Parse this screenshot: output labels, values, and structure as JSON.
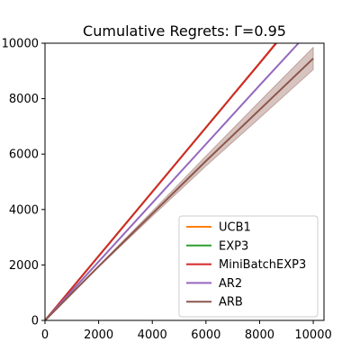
{
  "chart_data": {
    "type": "line",
    "title": "Cumulative Regrets: Γ=0.95",
    "xlabel": "",
    "ylabel": "",
    "xlim": [
      0,
      10400
    ],
    "ylim": [
      0,
      10000
    ],
    "xticks": [
      0,
      2000,
      4000,
      6000,
      8000,
      10000
    ],
    "yticks": [
      0,
      2000,
      4000,
      6000,
      8000,
      10000
    ],
    "grid": false,
    "legend_position": "lower-right",
    "series": [
      {
        "name": "UCB1",
        "color": "#ff7f0e",
        "x": [
          0,
          2000,
          4000,
          6000,
          8000,
          8600
        ],
        "y": [
          0,
          2320,
          4640,
          6960,
          9280,
          10000
        ]
      },
      {
        "name": "EXP3",
        "color": "#2ca02c",
        "x": [
          0,
          2000,
          4000,
          6000,
          8000,
          8620
        ],
        "y": [
          0,
          2320,
          4640,
          6960,
          9280,
          10000
        ]
      },
      {
        "name": "MiniBatchEXP3",
        "color": "#d62728",
        "x": [
          0,
          2000,
          4000,
          6000,
          8000,
          8620
        ],
        "y": [
          0,
          2320,
          4640,
          6960,
          9280,
          10000
        ]
      },
      {
        "name": "AR2",
        "color": "#9467bd",
        "x": [
          0,
          2000,
          4000,
          6000,
          8000,
          9450
        ],
        "y": [
          0,
          2120,
          4240,
          6360,
          8480,
          10000
        ]
      },
      {
        "name": "ARB",
        "color": "#8c564b",
        "x": [
          0,
          2000,
          4000,
          6000,
          8000,
          10000
        ],
        "y": [
          0,
          1950,
          3850,
          5750,
          7600,
          9450
        ],
        "band_low": [
          0,
          1920,
          3760,
          5570,
          7300,
          9050
        ],
        "band_high": [
          0,
          1980,
          3940,
          5930,
          7900,
          9850
        ]
      }
    ]
  }
}
